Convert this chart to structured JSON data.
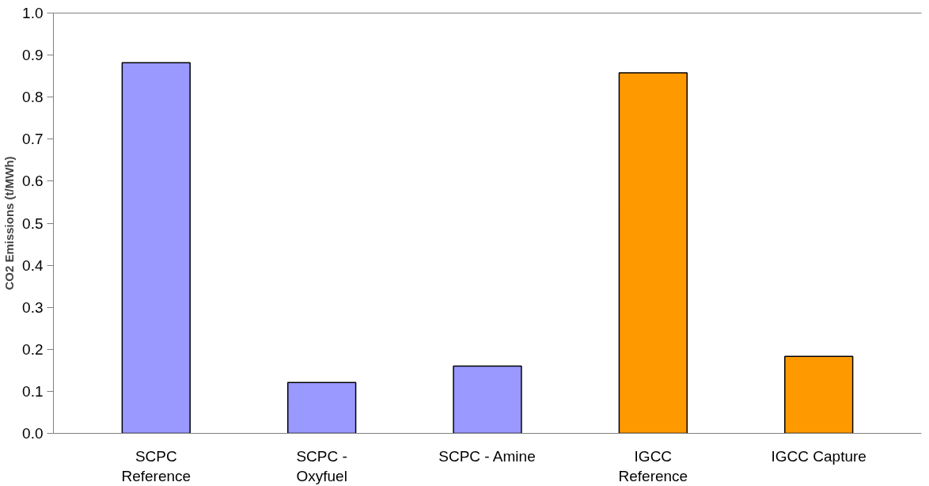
{
  "chart_data": {
    "type": "bar",
    "ylabel": "CO2 Emissions (t/MWh)",
    "categories": [
      "SCPC\nReference",
      "SCPC -\nOxyfuel",
      "SCPC - Amine",
      "IGCC\nReference",
      "IGCC Capture"
    ],
    "values": [
      0.882,
      0.121,
      0.16,
      0.858,
      0.183
    ],
    "colors": [
      "#9999ff",
      "#9999ff",
      "#9999ff",
      "#ff9900",
      "#ff9900"
    ],
    "ylim": [
      0,
      1.0
    ],
    "yticks": [
      {
        "value": 0,
        "label": "0.0"
      },
      {
        "value": 0.1,
        "label": "0.1"
      },
      {
        "value": 0.2,
        "label": "0.2"
      },
      {
        "value": 0.3,
        "label": "0.3"
      },
      {
        "value": 0.4,
        "label": "0.4"
      },
      {
        "value": 0.5,
        "label": "0.5"
      },
      {
        "value": 0.6,
        "label": "0.6"
      },
      {
        "value": 0.7,
        "label": "0.7"
      },
      {
        "value": 0.8,
        "label": "0.8"
      },
      {
        "value": 0.9,
        "label": "0.9"
      },
      {
        "value": 1.0,
        "label": "1.0"
      }
    ],
    "grid": false
  }
}
